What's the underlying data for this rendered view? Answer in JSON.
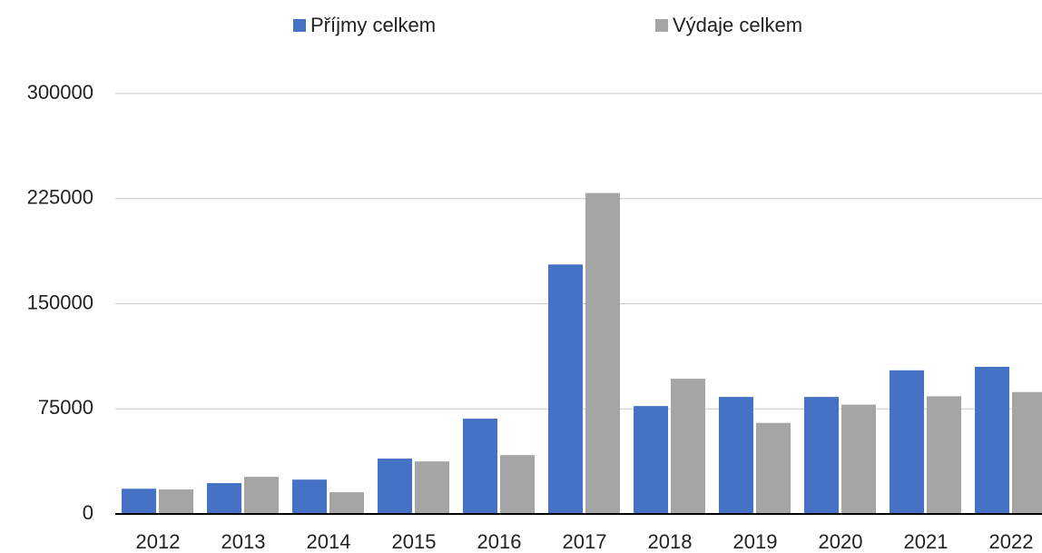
{
  "chart_data": {
    "type": "bar",
    "categories": [
      "2012",
      "2013",
      "2014",
      "2015",
      "2016",
      "2017",
      "2018",
      "2019",
      "2020",
      "2021",
      "2022"
    ],
    "series": [
      {
        "name": "Příjmy celkem",
        "color": "#4472c4",
        "values": [
          18000,
          22000,
          24500,
          39500,
          68000,
          178000,
          77000,
          83500,
          83500,
          102500,
          105000
        ]
      },
      {
        "name": "Výdaje celkem",
        "color": "#a5a5a5",
        "values": [
          17500,
          26500,
          15500,
          37500,
          42000,
          229000,
          96500,
          65000,
          78000,
          84000,
          87000
        ]
      }
    ],
    "ylim": [
      0,
      300000
    ],
    "yticks": [
      0,
      75000,
      150000,
      225000,
      300000
    ],
    "grid": true,
    "legend": "top"
  }
}
